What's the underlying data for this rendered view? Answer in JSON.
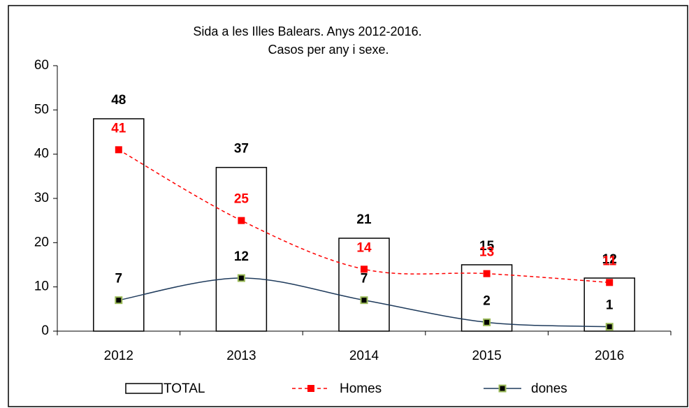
{
  "chart_data": {
    "type": "bar_line",
    "title": "Sida a les Illes Balears. Anys 2012-2016.",
    "subtitle": "Casos per any i sexe.",
    "categories": [
      "2012",
      "2013",
      "2014",
      "2015",
      "2016"
    ],
    "series": [
      {
        "name": "TOTAL",
        "type": "bar",
        "color": "#ffffff",
        "values": [
          48,
          37,
          21,
          15,
          12
        ]
      },
      {
        "name": "Homes",
        "type": "line",
        "color": "#ff0000",
        "dashed": true,
        "values": [
          41,
          25,
          14,
          13,
          11
        ]
      },
      {
        "name": "dones",
        "type": "line",
        "color": "#1f3b5c",
        "marker_color": "#9bbb59",
        "dashed": false,
        "values": [
          7,
          12,
          7,
          2,
          1
        ]
      }
    ],
    "ylim": [
      0,
      60
    ],
    "yticks": [
      0,
      10,
      20,
      30,
      40,
      50,
      60
    ],
    "legend": "bottom"
  }
}
